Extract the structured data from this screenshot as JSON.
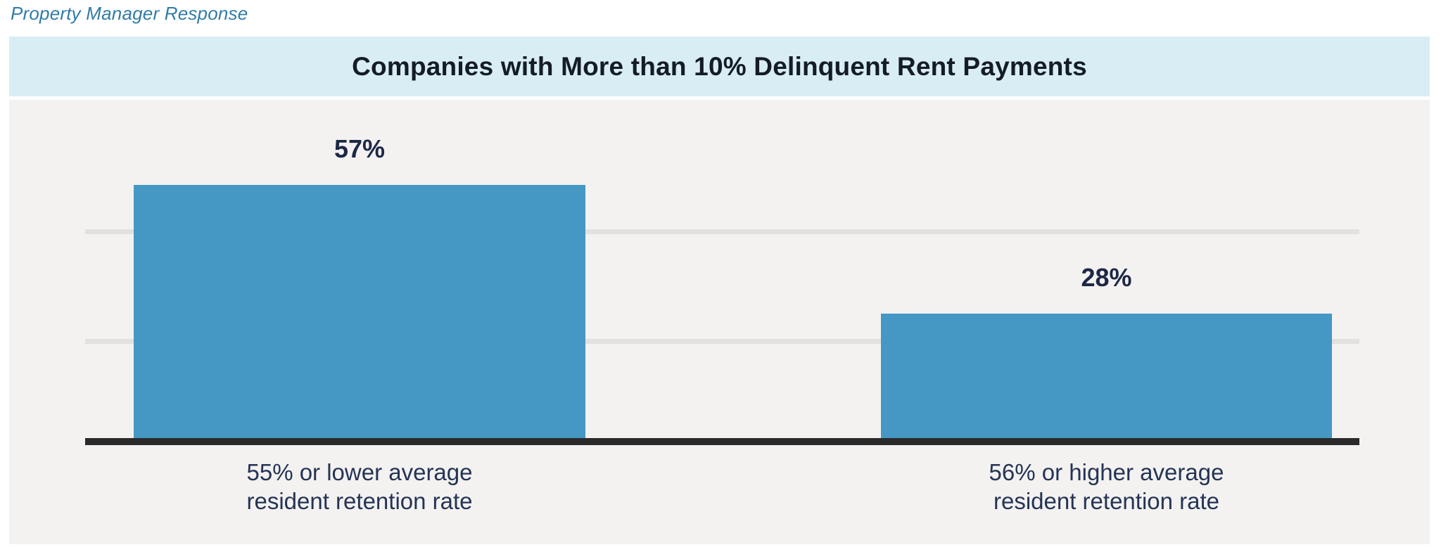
{
  "header": {
    "context_label": "Property Manager Response"
  },
  "chart_data": {
    "type": "bar",
    "orientation": "vertical",
    "title": "Companies with More than 10% Delinquent Rent Payments",
    "categories": [
      "55% or lower average\nresident retention rate",
      "56% or higher average\nresident retention rate"
    ],
    "values": [
      57,
      28
    ],
    "value_labels": [
      "57%",
      "28%"
    ],
    "unit": "%",
    "xlabel": "",
    "ylabel": "",
    "ylim": [
      0,
      76
    ],
    "y_tick_labels": [],
    "grid": "2 horizontal gridlines, unlabeled",
    "legend": "none",
    "data_labels_position": "above bars"
  },
  "colors": {
    "bar": "#4597c4",
    "title_band_bg": "#d9edf4",
    "chart_bg": "#f3f2f1",
    "gridline": "#e3e1de",
    "axis": "#2a2a2a",
    "title_text": "#141c26",
    "value_text": "#1d2746",
    "category_text": "#253455",
    "context_text": "#2f7ba8",
    "page_bg": "#ffffff"
  }
}
